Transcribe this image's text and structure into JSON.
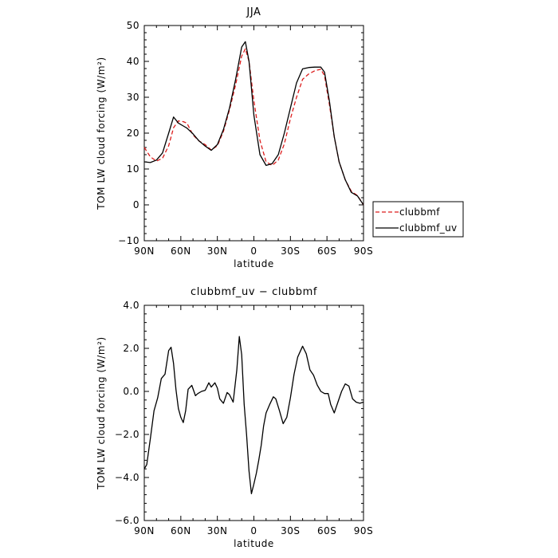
{
  "chart_data": [
    {
      "type": "line",
      "title": "JJA",
      "xlabel": "latitude",
      "ylabel": "TOM LW cloud forcing (W/m²)",
      "xlim": [
        90,
        -90
      ],
      "ylim": [
        -10,
        50
      ],
      "xticks": [
        90,
        60,
        30,
        0,
        -30,
        -60,
        -90
      ],
      "xtick_labels": [
        "90N",
        "60N",
        "30N",
        "0",
        "30S",
        "60S",
        "90S"
      ],
      "yticks": [
        -10,
        0,
        10,
        20,
        30,
        40,
        50
      ],
      "ytick_labels": [
        "−10",
        "0",
        "10",
        "20",
        "30",
        "40",
        "50"
      ],
      "legend": "outside-right",
      "grid": false,
      "series": [
        {
          "name": "clubbmf",
          "color": "#dd1c1c",
          "dash": "dashed",
          "x": [
            90,
            85,
            80,
            75,
            70,
            66,
            62,
            58,
            55,
            50,
            45,
            40,
            35,
            30,
            25,
            20,
            15,
            10,
            7,
            4,
            0,
            -5,
            -10,
            -15,
            -20,
            -25,
            -30,
            -35,
            -40,
            -45,
            -50,
            -55,
            -58,
            -62,
            -66,
            -70,
            -75,
            -80,
            -85,
            -90
          ],
          "y": [
            16,
            13.4,
            12.2,
            13,
            16.5,
            21.5,
            23.4,
            23.2,
            22.8,
            19.5,
            17.8,
            16.8,
            15.3,
            16.5,
            20.5,
            26.5,
            33.5,
            41.5,
            43.5,
            40,
            29,
            18,
            12,
            11,
            12.5,
            17,
            24,
            30,
            35,
            36.5,
            37.4,
            37.8,
            36,
            28,
            19,
            12,
            7,
            3.8,
            2.6,
            0
          ]
        },
        {
          "name": "clubbmf_uv",
          "color": "#000000",
          "dash": "solid",
          "x": [
            90,
            85,
            80,
            75,
            70,
            66,
            62,
            58,
            55,
            50,
            45,
            40,
            35,
            30,
            25,
            20,
            15,
            10,
            7,
            4,
            0,
            -5,
            -10,
            -15,
            -20,
            -25,
            -30,
            -35,
            -40,
            -45,
            -50,
            -55,
            -58,
            -62,
            -66,
            -70,
            -75,
            -80,
            -85,
            -90
          ],
          "y": [
            12,
            11.8,
            12.5,
            14.5,
            20,
            24.5,
            22.8,
            22,
            21.4,
            19.8,
            17.8,
            16.4,
            15.2,
            16.8,
            21,
            27,
            35,
            44,
            45.5,
            40,
            25,
            14,
            11,
            11.5,
            14,
            20,
            27,
            34,
            37.9,
            38.3,
            38.4,
            38.4,
            37,
            29,
            19,
            12,
            7,
            3.5,
            2.5,
            0
          ]
        }
      ]
    },
    {
      "type": "line",
      "title": "clubbmf_uv − clubbmf",
      "xlabel": "latitude",
      "ylabel": "TOM LW cloud forcing (W/m²)",
      "xlim": [
        90,
        -90
      ],
      "ylim": [
        -6,
        4
      ],
      "xticks": [
        90,
        60,
        30,
        0,
        -30,
        -60,
        -90
      ],
      "xtick_labels": [
        "90N",
        "60N",
        "30N",
        "0",
        "30S",
        "60S",
        "90S"
      ],
      "yticks": [
        -6,
        -4,
        -2,
        0,
        2,
        4
      ],
      "ytick_labels": [
        "−6.0",
        "−4.0",
        "−2.0",
        "0.0",
        "2.0",
        "4.0"
      ],
      "grid": false,
      "series": [
        {
          "color": "#000000",
          "dash": "solid",
          "x": [
            90,
            88,
            85,
            82,
            79,
            76,
            73,
            70,
            68,
            66,
            64,
            62,
            60,
            58,
            56,
            54,
            51,
            48,
            46,
            43,
            40,
            37,
            35,
            32,
            30,
            28,
            25,
            22,
            20,
            17,
            14,
            12,
            10,
            8,
            6,
            4,
            2,
            0,
            -2,
            -4,
            -6,
            -8,
            -10,
            -13,
            -16,
            -18,
            -21,
            -24,
            -27,
            -30,
            -33,
            -36,
            -40,
            -43,
            -46,
            -49,
            -52,
            -55,
            -58,
            -61,
            -63,
            -66,
            -69,
            -72,
            -75,
            -78,
            -81,
            -84,
            -87,
            -90
          ],
          "y": [
            -3.6,
            -3.4,
            -2.2,
            -0.9,
            -0.3,
            0.6,
            0.8,
            1.9,
            2.05,
            1.3,
            0.1,
            -0.8,
            -1.2,
            -1.45,
            -0.9,
            0.1,
            0.28,
            -0.2,
            -0.1,
            0.0,
            0.05,
            0.4,
            0.2,
            0.4,
            0.15,
            -0.35,
            -0.55,
            -0.05,
            -0.15,
            -0.5,
            1.0,
            2.55,
            1.7,
            -0.6,
            -2.0,
            -3.7,
            -4.75,
            -4.3,
            -3.8,
            -3.2,
            -2.5,
            -1.6,
            -1.0,
            -0.6,
            -0.25,
            -0.35,
            -0.9,
            -1.5,
            -1.2,
            -0.3,
            0.8,
            1.6,
            2.1,
            1.75,
            1.0,
            0.75,
            0.3,
            0.0,
            -0.1,
            -0.1,
            -0.6,
            -1.0,
            -0.5,
            0.0,
            0.35,
            0.25,
            -0.35,
            -0.5,
            -0.55,
            -0.5
          ]
        }
      ]
    }
  ]
}
